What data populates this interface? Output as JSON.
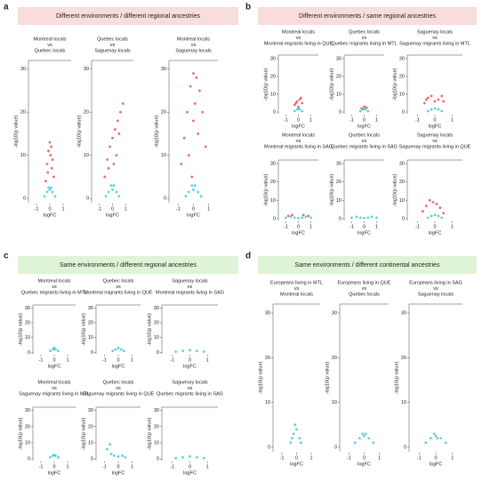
{
  "panels": [
    {
      "letter": "a",
      "heading": "Different environments / different regional ancestries",
      "background": "#f9dcdc"
    },
    {
      "letter": "b",
      "heading": "Different environments / same regional ancestries",
      "background": "#f9dcdc"
    },
    {
      "letter": "c",
      "heading": "Same environments / different regional ancestries",
      "background": "#dff3d6"
    },
    {
      "letter": "d",
      "heading": "Same environments / different continental ancestries",
      "background": "#dff3d6"
    }
  ],
  "chart_data": [
    {
      "type": "scatter",
      "title_lines": [
        "Montreal locals",
        "vs",
        "Quebec locals"
      ],
      "xlabel": "logFC",
      "ylabel": "-log10(p value)",
      "xlim": [
        -1.6,
        1.6
      ],
      "ylim": [
        -1,
        32
      ],
      "xticks": [
        -1,
        0,
        1
      ],
      "yticks": [
        0,
        10,
        20,
        30
      ],
      "series": [
        {
          "color": "#e8474c",
          "x": [
            -0.3,
            -0.2,
            -0.1,
            0,
            0.1,
            0.2,
            0.3,
            -0.15,
            0.15,
            0.05
          ],
          "values": [
            4,
            8,
            11,
            13,
            12,
            9,
            5,
            6,
            7,
            10
          ]
        },
        {
          "color": "#3cc4cc",
          "x": [
            -0.4,
            -0.2,
            0,
            0.2,
            0.4,
            -0.1,
            0.1
          ],
          "values": [
            0.5,
            1.5,
            2,
            1.5,
            0.5,
            2.5,
            2.5
          ]
        }
      ]
    },
    {
      "type": "scatter",
      "title_lines": [
        "Quebec locals",
        "vs",
        "Saguenay locals"
      ],
      "xlabel": "logFC",
      "ylabel": "-log10(p value)",
      "xlim": [
        -1.6,
        1.6
      ],
      "ylim": [
        -1,
        32
      ],
      "xticks": [
        -1,
        0,
        1
      ],
      "yticks": [
        0,
        10,
        20,
        30
      ],
      "series": [
        {
          "color": "#e8474c",
          "x": [
            -0.6,
            -0.4,
            -0.2,
            0,
            0.2,
            0.4,
            0.6,
            0.8,
            0.3,
            -0.3,
            0.5,
            0.1
          ],
          "values": [
            5,
            9,
            12,
            14,
            16,
            18,
            20,
            22,
            10,
            7,
            15,
            8
          ]
        },
        {
          "color": "#3cc4cc",
          "x": [
            -0.5,
            -0.3,
            0,
            0.3,
            0.5,
            -0.1,
            0.1
          ],
          "values": [
            0.5,
            1.5,
            2,
            1.5,
            0.5,
            3,
            3
          ]
        }
      ]
    },
    {
      "type": "scatter",
      "title_lines": [
        "Montreal locals",
        "vs",
        "Saguenay locals"
      ],
      "xlabel": "logFC",
      "ylabel": "-log10(p value)",
      "xlim": [
        -1.6,
        1.6
      ],
      "ylim": [
        -1,
        32
      ],
      "xticks": [
        -1,
        0,
        1
      ],
      "yticks": [
        0,
        10,
        20,
        30
      ],
      "series": [
        {
          "color": "#e8474c",
          "x": [
            -0.8,
            -0.6,
            -0.4,
            -0.2,
            0,
            0.2,
            0.4,
            0.6,
            0.8,
            -0.3,
            0.3,
            0,
            0.1,
            -0.1
          ],
          "values": [
            8,
            14,
            20,
            26,
            29,
            28,
            25,
            20,
            12,
            10,
            15,
            18,
            22,
            5
          ]
        },
        {
          "color": "#3cc4cc",
          "x": [
            -0.5,
            -0.3,
            0,
            0.3,
            0.5,
            -0.1,
            0.1
          ],
          "values": [
            0.5,
            1.5,
            2,
            1.5,
            0.5,
            3,
            3
          ]
        }
      ]
    },
    {
      "type": "scatter",
      "title_lines": [
        "Montreal locals",
        "vs",
        "Montreal migrants living in QUE"
      ],
      "xlabel": "logFC",
      "ylabel": "-log10(p value)",
      "xlim": [
        -1.6,
        1.6
      ],
      "ylim": [
        -1,
        32
      ],
      "xticks": [
        -1,
        0,
        1
      ],
      "yticks": [
        0,
        10,
        20,
        30
      ],
      "series": [
        {
          "color": "#e8474c",
          "x": [
            -0.3,
            -0.1,
            0.1,
            0.3,
            0,
            0.2,
            -0.2
          ],
          "values": [
            4,
            6,
            7,
            5,
            3,
            8,
            5
          ]
        },
        {
          "color": "#3cc4cc",
          "x": [
            -0.3,
            -0.1,
            0.1,
            0.3,
            0
          ],
          "values": [
            0.5,
            1.5,
            1.5,
            0.5,
            2
          ]
        }
      ]
    },
    {
      "type": "scatter",
      "title_lines": [
        "Quebec locals",
        "vs",
        "Quebec migrants living in MTL"
      ],
      "xlabel": "logFC",
      "ylabel": "-log10(p value)",
      "xlim": [
        -1.6,
        1.6
      ],
      "ylim": [
        -1,
        32
      ],
      "xticks": [
        -1,
        0,
        1
      ],
      "yticks": [
        0,
        10,
        20,
        30
      ],
      "series": [
        {
          "color": "#e8474c",
          "x": [
            -0.2,
            0,
            0.2
          ],
          "values": [
            2,
            3,
            2.5
          ]
        },
        {
          "color": "#3cc4cc",
          "x": [
            -0.3,
            -0.1,
            0.1,
            0.3,
            0
          ],
          "values": [
            0.5,
            1.5,
            1.5,
            0.5,
            2
          ]
        }
      ]
    },
    {
      "type": "scatter",
      "title_lines": [
        "Saguenay locals",
        "vs",
        "Saguenay migrants living in MTL"
      ],
      "xlabel": "logFC",
      "ylabel": "-log10(p value)",
      "xlim": [
        -1.6,
        1.6
      ],
      "ylim": [
        -1,
        32
      ],
      "xticks": [
        -1,
        0,
        1
      ],
      "yticks": [
        0,
        10,
        20,
        30
      ],
      "series": [
        {
          "color": "#e8474c",
          "x": [
            -0.6,
            -0.4,
            -0.2,
            0,
            0.2,
            0.4,
            0.5,
            -0.5
          ],
          "values": [
            5,
            8,
            9,
            6,
            7,
            9,
            6,
            7
          ]
        },
        {
          "color": "#3cc4cc",
          "x": [
            -0.4,
            -0.2,
            0,
            0.2,
            0.4
          ],
          "values": [
            0.5,
            1.5,
            2,
            1.5,
            0.5
          ]
        }
      ]
    },
    {
      "type": "scatter",
      "title_lines": [
        "Montreal locals",
        "vs",
        "Montreal migrants living in SAG"
      ],
      "xlabel": "logFC",
      "ylabel": "-log10(p value)",
      "xlim": [
        -1.6,
        1.6
      ],
      "ylim": [
        -1,
        32
      ],
      "xticks": [
        -1,
        0,
        1
      ],
      "yticks": [
        0,
        10,
        20,
        30
      ],
      "series": [
        {
          "color": "#e8474c",
          "x": [
            -0.8,
            -0.5,
            0.4,
            0.8
          ],
          "values": [
            1.5,
            2,
            2,
            1.5
          ]
        },
        {
          "color": "#3cc4cc",
          "x": [
            -1,
            -0.6,
            -0.3,
            0,
            0.3,
            0.6,
            1
          ],
          "values": [
            0.5,
            1,
            0.5,
            0.3,
            0.5,
            1,
            0.5
          ]
        }
      ]
    },
    {
      "type": "scatter",
      "title_lines": [
        "Quebec locals",
        "vs",
        "Quebec migrants living in SAG"
      ],
      "xlabel": "logFC",
      "ylabel": "-log10(p value)",
      "xlim": [
        -1.6,
        1.6
      ],
      "ylim": [
        -1,
        32
      ],
      "xticks": [
        -1,
        0,
        1
      ],
      "yticks": [
        0,
        10,
        20,
        30
      ],
      "series": [
        {
          "color": "#3cc4cc",
          "x": [
            -1,
            -0.6,
            -0.3,
            0,
            0.3,
            0.6,
            1
          ],
          "values": [
            0.5,
            1,
            0.5,
            0.3,
            0.5,
            1,
            0.5
          ]
        }
      ]
    },
    {
      "type": "scatter",
      "title_lines": [
        "Saguenay locals",
        "vs",
        "Saguenay migrants living in QUE"
      ],
      "xlabel": "logFC",
      "ylabel": "-log10(p value)",
      "xlim": [
        -1.6,
        1.6
      ],
      "ylim": [
        -1,
        32
      ],
      "xticks": [
        -1,
        0,
        1
      ],
      "yticks": [
        0,
        10,
        20,
        30
      ],
      "series": [
        {
          "color": "#e8474c",
          "x": [
            -0.7,
            -0.5,
            -0.3,
            -0.1,
            0.1,
            0.3,
            0.5
          ],
          "values": [
            4,
            7,
            10,
            9,
            8,
            6,
            3
          ]
        },
        {
          "color": "#3cc4cc",
          "x": [
            -0.4,
            -0.2,
            0,
            0.2,
            0.4
          ],
          "values": [
            0.5,
            1.5,
            2,
            1.5,
            0.5
          ]
        }
      ]
    },
    {
      "type": "scatter",
      "title_lines": [
        "Montreal locals",
        "vs",
        "Quebec migrants living in MTL"
      ],
      "xlabel": "logFC",
      "ylabel": "-log10(p value)",
      "xlim": [
        -1.6,
        1.6
      ],
      "ylim": [
        -1,
        32
      ],
      "xticks": [
        -1,
        0,
        1
      ],
      "yticks": [
        0,
        10,
        20,
        30
      ],
      "series": [
        {
          "color": "#3cc4cc",
          "x": [
            -0.3,
            -0.1,
            0.1,
            0.3,
            0
          ],
          "values": [
            1,
            2,
            2,
            1,
            3
          ]
        }
      ]
    },
    {
      "type": "scatter",
      "title_lines": [
        "Quebec locals",
        "vs",
        "Montreal migrants living in QUE"
      ],
      "xlabel": "logFC",
      "ylabel": "-log10(p value)",
      "xlim": [
        -1.6,
        1.6
      ],
      "ylim": [
        -1,
        32
      ],
      "xticks": [
        -1,
        0,
        1
      ],
      "yticks": [
        0,
        10,
        20,
        30
      ],
      "series": [
        {
          "color": "#3cc4cc",
          "x": [
            -0.4,
            -0.2,
            0,
            0.2,
            0.4
          ],
          "values": [
            1,
            2,
            3,
            2,
            1
          ]
        }
      ]
    },
    {
      "type": "scatter",
      "title_lines": [
        "Saguenay locals",
        "vs",
        "Montreal migrants living in SAG"
      ],
      "xlabel": "logFC",
      "ylabel": "-log10(p value)",
      "xlim": [
        -1.6,
        1.6
      ],
      "ylim": [
        -1,
        32
      ],
      "xticks": [
        -1,
        0,
        1
      ],
      "yticks": [
        0,
        10,
        20,
        30
      ],
      "series": [
        {
          "color": "#3cc4cc",
          "x": [
            -0.8,
            -0.4,
            0,
            0.4,
            0.8
          ],
          "values": [
            0.5,
            1,
            1.5,
            1,
            0.5
          ]
        }
      ]
    },
    {
      "type": "scatter",
      "title_lines": [
        "Montreal locals",
        "vs",
        "Saguenay migrants living in MTL"
      ],
      "xlabel": "logFC",
      "ylabel": "-log10(p value)",
      "xlim": [
        -1.6,
        1.6
      ],
      "ylim": [
        -1,
        32
      ],
      "xticks": [
        -1,
        0,
        1
      ],
      "yticks": [
        0,
        10,
        20,
        30
      ],
      "series": [
        {
          "color": "#3cc4cc",
          "x": [
            -0.3,
            -0.1,
            0.1,
            0.3,
            0
          ],
          "values": [
            1,
            2,
            2,
            1,
            2.5
          ]
        }
      ]
    },
    {
      "type": "scatter",
      "title_lines": [
        "Quebec locals",
        "vs",
        "Saguenay migrants living in QUE"
      ],
      "xlabel": "logFC",
      "ylabel": "-log10(p value)",
      "xlim": [
        -1.6,
        1.6
      ],
      "ylim": [
        -1,
        32
      ],
      "xticks": [
        -1,
        0,
        1
      ],
      "yticks": [
        0,
        10,
        20,
        30
      ],
      "series": [
        {
          "color": "#3cc4cc",
          "x": [
            -0.8,
            -0.5,
            -0.3,
            0,
            0.3,
            0.5,
            -0.6
          ],
          "values": [
            6,
            3,
            2,
            1.5,
            2,
            1,
            9
          ]
        }
      ]
    },
    {
      "type": "scatter",
      "title_lines": [
        "Saguenay locals",
        "vs",
        "Quebec migrants living in SAG"
      ],
      "xlabel": "logFC",
      "ylabel": "-log10(p value)",
      "xlim": [
        -1.6,
        1.6
      ],
      "ylim": [
        -1,
        32
      ],
      "xticks": [
        -1,
        0,
        1
      ],
      "yticks": [
        0,
        10,
        20,
        30
      ],
      "series": [
        {
          "color": "#3cc4cc",
          "x": [
            -0.8,
            -0.4,
            0,
            0.4,
            0.8
          ],
          "values": [
            0.5,
            1,
            1.5,
            1,
            0.5
          ]
        }
      ]
    },
    {
      "type": "scatter",
      "title_lines": [
        "Europeans living in MTL",
        "vs",
        "Montreal locals"
      ],
      "xlabel": "logFC",
      "ylabel": "-log10(p value)",
      "xlim": [
        -1.6,
        1.6
      ],
      "ylim": [
        -1,
        32
      ],
      "xticks": [
        -1,
        0,
        1
      ],
      "yticks": [
        0,
        10,
        20,
        30
      ],
      "series": [
        {
          "color": "#3cc4cc",
          "x": [
            -0.4,
            -0.2,
            0,
            0.2,
            0.3,
            -0.1,
            -0.3
          ],
          "values": [
            1,
            3,
            4,
            2,
            1,
            5,
            2
          ]
        }
      ]
    },
    {
      "type": "scatter",
      "title_lines": [
        "Europeans living in QUE",
        "vs",
        "Quebec locals"
      ],
      "xlabel": "logFC",
      "ylabel": "-log10(p value)",
      "xlim": [
        -1.6,
        1.6
      ],
      "ylim": [
        -1,
        32
      ],
      "xticks": [
        -1,
        0,
        1
      ],
      "yticks": [
        0,
        10,
        20,
        30
      ],
      "series": [
        {
          "color": "#3cc4cc",
          "x": [
            -0.6,
            -0.3,
            0,
            0.3,
            0.6,
            -0.1,
            0.1
          ],
          "values": [
            1,
            2,
            2.5,
            2,
            1,
            3,
            3
          ]
        }
      ]
    },
    {
      "type": "scatter",
      "title_lines": [
        "Europeans living in SAG",
        "vs",
        "Saguenay locals"
      ],
      "xlabel": "logFC",
      "ylabel": "-log10(p value)",
      "xlim": [
        -1.6,
        1.6
      ],
      "ylim": [
        -1,
        32
      ],
      "xticks": [
        -1,
        0,
        1
      ],
      "yticks": [
        0,
        10,
        20,
        30
      ],
      "series": [
        {
          "color": "#3cc4cc",
          "x": [
            -0.6,
            -0.3,
            0,
            0.3,
            0.6,
            -0.1,
            0.1
          ],
          "values": [
            1,
            2,
            2.5,
            2,
            1,
            3,
            2
          ]
        }
      ]
    }
  ]
}
